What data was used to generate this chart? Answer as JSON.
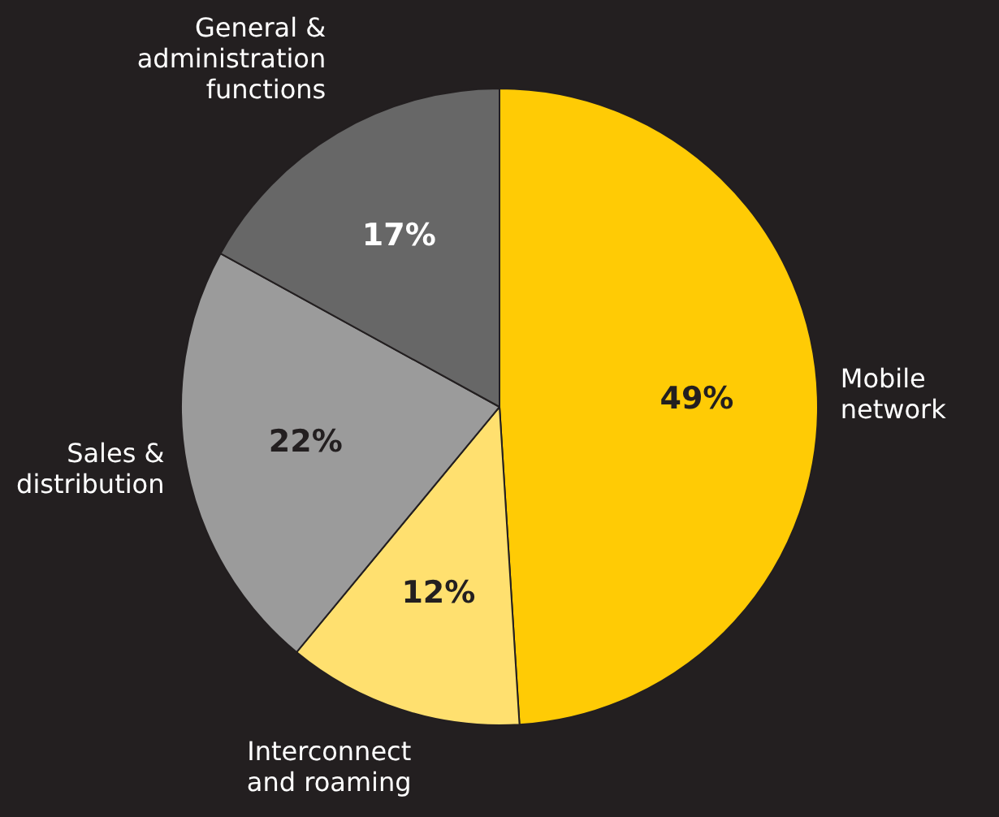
{
  "chart_data": {
    "type": "pie",
    "categories": [
      "Mobile\nnetwork",
      "Interconnect\nand roaming",
      "Sales &\ndistribution",
      "General &\nadministration\nfunctions"
    ],
    "values": [
      49,
      12,
      22,
      17
    ],
    "colors": [
      "#ffcb05",
      "#ffe06f",
      "#9b9b9b",
      "#676767"
    ],
    "value_labels": [
      "49%",
      "12%",
      "22%",
      "17%"
    ],
    "legend": false
  }
}
